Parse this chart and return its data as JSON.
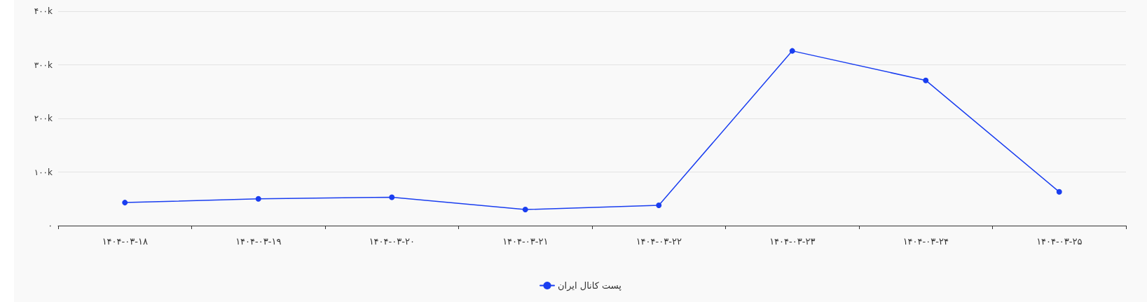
{
  "chart_data": {
    "type": "line",
    "categories": [
      "۱۴۰۴-۰۳-۱۸",
      "۱۴۰۴-۰۳-۱۹",
      "۱۴۰۴-۰۳-۲۰",
      "۱۴۰۴-۰۳-۲۱",
      "۱۴۰۴-۰۳-۲۲",
      "۱۴۰۴-۰۳-۲۳",
      "۱۴۰۴-۰۳-۲۴",
      "۱۴۰۴-۰۳-۲۵"
    ],
    "series": [
      {
        "name": "پست کانال ایران",
        "color": "#1a3ef0",
        "values": [
          43000,
          50000,
          53000,
          30000,
          38000,
          326000,
          271000,
          63000
        ]
      }
    ],
    "ylim": [
      0,
      400000
    ],
    "yticks": [
      {
        "value": 0,
        "label": "۰"
      },
      {
        "value": 100000,
        "label": "۱۰۰k"
      },
      {
        "value": 200000,
        "label": "۲۰۰k"
      },
      {
        "value": 300000,
        "label": "۳۰۰k"
      },
      {
        "value": 400000,
        "label": "۴۰۰k"
      }
    ],
    "grid": "y",
    "legend": "bottom",
    "marker": "circle",
    "line_style": "solid"
  }
}
